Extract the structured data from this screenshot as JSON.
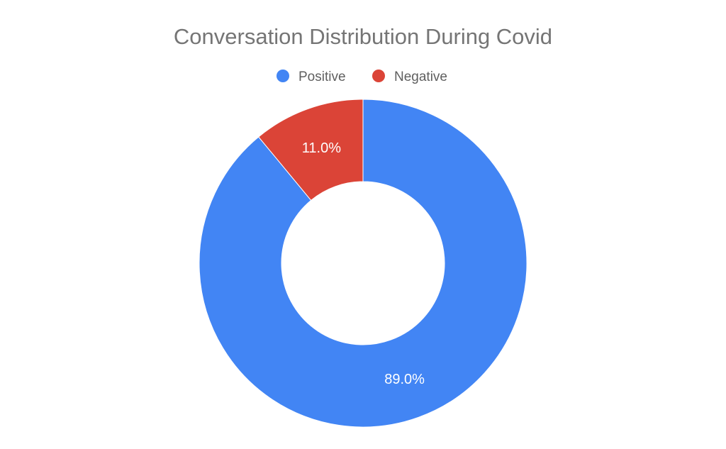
{
  "chart_data": {
    "type": "pie",
    "variant": "donut",
    "title": "Conversation Distribution During Covid",
    "legend_position": "top-center",
    "slices": [
      {
        "label": "Positive",
        "value": 89.0,
        "display": "89.0%",
        "color": "#4285F4"
      },
      {
        "label": "Negative",
        "value": 11.0,
        "display": "11.0%",
        "color": "#DB4437"
      }
    ]
  }
}
